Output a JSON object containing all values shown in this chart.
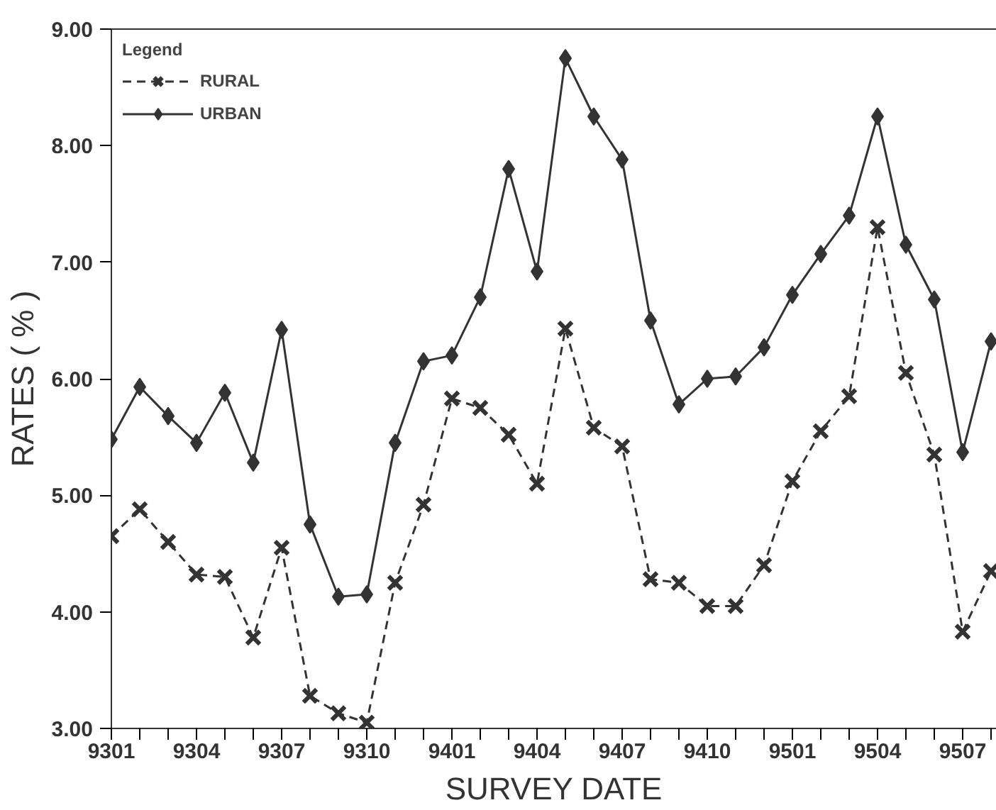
{
  "chart_data": {
    "type": "line",
    "xlabel": "SURVEY DATE",
    "ylabel": "RATES ( % )",
    "legend_title": "Legend",
    "legend": "top left",
    "grid": false,
    "categories": [
      "9301",
      null,
      null,
      "9304",
      null,
      null,
      "9307",
      null,
      null,
      "9310",
      null,
      null,
      "9401",
      null,
      null,
      "9404",
      null,
      null,
      "9407",
      null,
      null,
      "9410",
      null,
      null,
      "9501",
      null,
      null,
      "9504",
      null,
      null,
      "9507",
      null
    ],
    "ylim": [
      3,
      9
    ],
    "yticks": [
      {
        "value": 3,
        "label": "3.00"
      },
      {
        "value": 4,
        "label": "4.00"
      },
      {
        "value": 5,
        "label": "5.00"
      },
      {
        "value": 6,
        "label": "6.00"
      },
      {
        "value": 7,
        "label": "7.00"
      },
      {
        "value": 8,
        "label": "8.00"
      },
      {
        "value": 9,
        "label": "9.00"
      }
    ],
    "series": [
      {
        "name": "RURAL",
        "color": "#333333",
        "marker": "cross",
        "line_style": "dashed",
        "values": [
          4.65,
          4.88,
          4.6,
          4.32,
          4.3,
          3.78,
          4.55,
          3.28,
          3.13,
          3.05,
          4.25,
          4.92,
          5.83,
          5.75,
          5.52,
          5.1,
          6.43,
          5.58,
          5.42,
          4.28,
          4.25,
          4.05,
          4.05,
          4.4,
          5.12,
          5.55,
          5.85,
          7.3,
          6.05,
          5.35,
          3.83,
          4.35
        ]
      },
      {
        "name": "URBAN",
        "color": "#333333",
        "marker": "diamond",
        "line_style": "solid",
        "values": [
          5.48,
          5.93,
          5.68,
          5.45,
          5.88,
          5.28,
          6.42,
          4.75,
          4.13,
          4.15,
          5.45,
          6.15,
          6.2,
          6.7,
          7.8,
          6.92,
          8.75,
          8.25,
          7.88,
          6.5,
          5.78,
          6.0,
          6.02,
          6.27,
          6.72,
          7.07,
          7.4,
          8.25,
          7.15,
          6.68,
          5.37,
          6.32
        ]
      }
    ]
  }
}
